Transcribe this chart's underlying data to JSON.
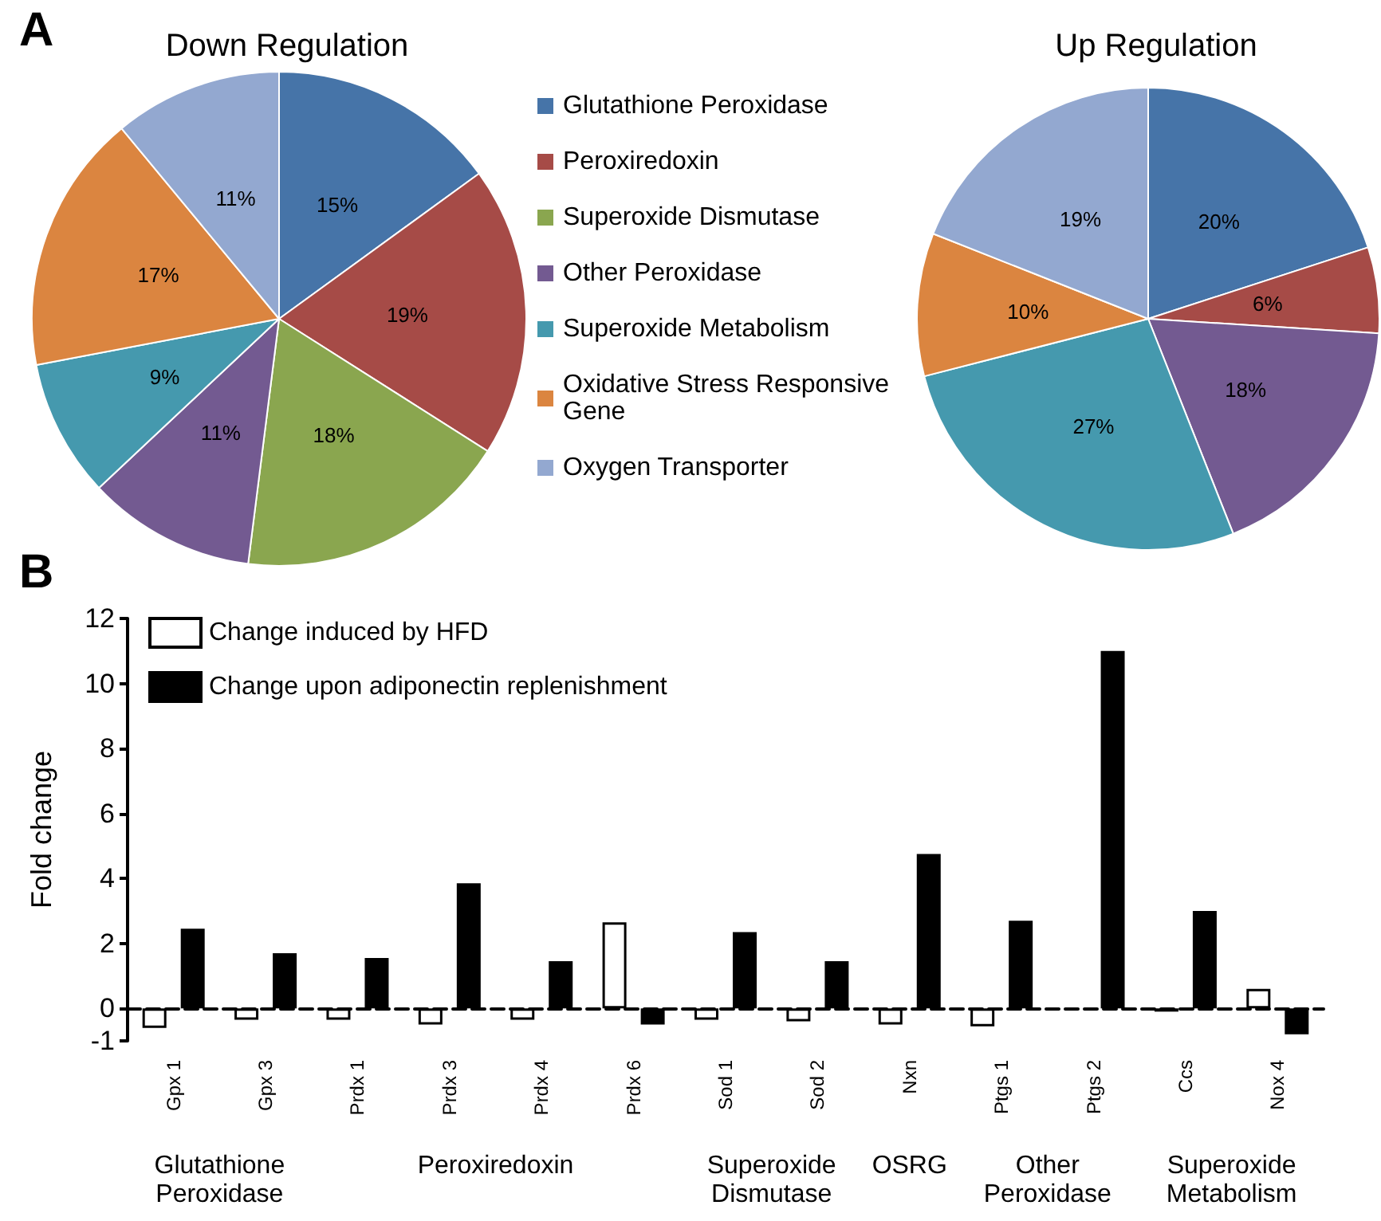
{
  "chart_data": [
    {
      "type": "pie",
      "title": "Down Regulation",
      "annotations": [
        "A"
      ],
      "legend": "right",
      "categories": [
        "Glutathione Peroxidase",
        "Peroxiredoxin",
        "Superoxide Dismutase",
        "Other Peroxidase",
        "Superoxide Metabolism",
        "Oxidative Stress Responsive Gene",
        "Oxygen Transporter"
      ],
      "values": [
        15,
        19,
        18,
        11,
        9,
        17,
        11
      ],
      "value_labels": [
        "15%",
        "19%",
        "18%",
        "11%",
        "9%",
        "17%",
        "11%"
      ],
      "colors": [
        "#4674a8",
        "#a64b47",
        "#8aa64f",
        "#735a91",
        "#4599ae",
        "#db8540",
        "#93a8d0"
      ]
    },
    {
      "type": "pie",
      "title": "Up Regulation",
      "categories": [
        null,
        null,
        null,
        null,
        null,
        null
      ],
      "values": [
        20,
        6,
        18,
        27,
        10,
        19
      ],
      "value_labels": [
        "20%",
        "6%",
        "18%",
        "27%",
        "10%",
        "19%"
      ],
      "colors": [
        "#4674a8",
        "#a64b47",
        "#735a91",
        "#4599ae",
        "#db8540",
        "#93a8d0"
      ]
    },
    {
      "type": "bar",
      "ylabel": "Fold change",
      "legend": "top left",
      "annotations": [
        "B",
        "Glutathione Peroxidase",
        "Peroxiredoxin",
        "Superoxide Dismutase",
        "OSRG",
        "Other Peroxidase",
        "Superoxide Metabolism"
      ],
      "categories": [
        "Gpx 1",
        "Gpx 3",
        "Prdx 1",
        "Prdx 3",
        "Prdx 4",
        "Prdx 6",
        "Sod 1",
        "Sod 2",
        "Nxn",
        "Ptgs 1",
        "Ptgs 2",
        "Ccs",
        "Nox 4"
      ],
      "ylim": [
        -1,
        12
      ],
      "yticks": [
        -1,
        0,
        2,
        4,
        6,
        8,
        10,
        12
      ],
      "series": [
        {
          "name": "Change induced by HFD",
          "color": "#ffffff",
          "values": [
            -0.6,
            -0.35,
            -0.35,
            -0.5,
            -0.35,
            2.65,
            -0.35,
            -0.4,
            -0.5,
            -0.55,
            null,
            -0.1,
            0.6
          ]
        },
        {
          "name": "Change upon adiponectin replenishment",
          "color": "#000000",
          "values": [
            2.45,
            1.7,
            1.55,
            3.85,
            1.45,
            -0.5,
            2.35,
            1.45,
            4.75,
            2.7,
            11,
            3.0,
            -0.8
          ]
        }
      ]
    }
  ]
}
